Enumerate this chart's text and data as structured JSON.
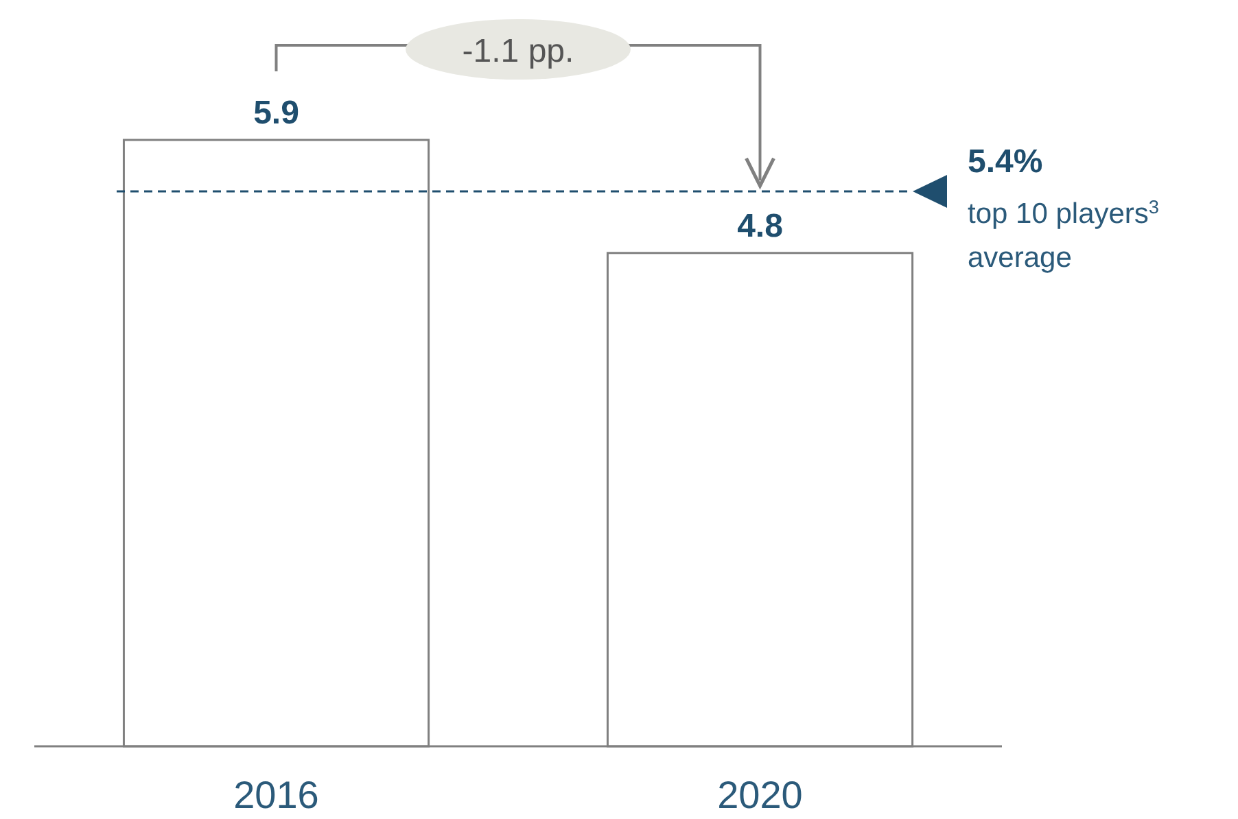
{
  "chart_data": {
    "type": "bar",
    "categories": [
      "2016",
      "2020"
    ],
    "values": [
      5.9,
      4.8
    ],
    "color": "#ffffff",
    "tick_labels": "x",
    "data_labels": true,
    "ref_lines": [
      {
        "axis": "y",
        "value": 5.4,
        "label": "5.4%",
        "color": "#1f4e6e",
        "line_style": "dashed"
      }
    ],
    "annotations": [
      "-1.1 pp.",
      "top 10 players$^{3}$ average"
    ]
  }
}
